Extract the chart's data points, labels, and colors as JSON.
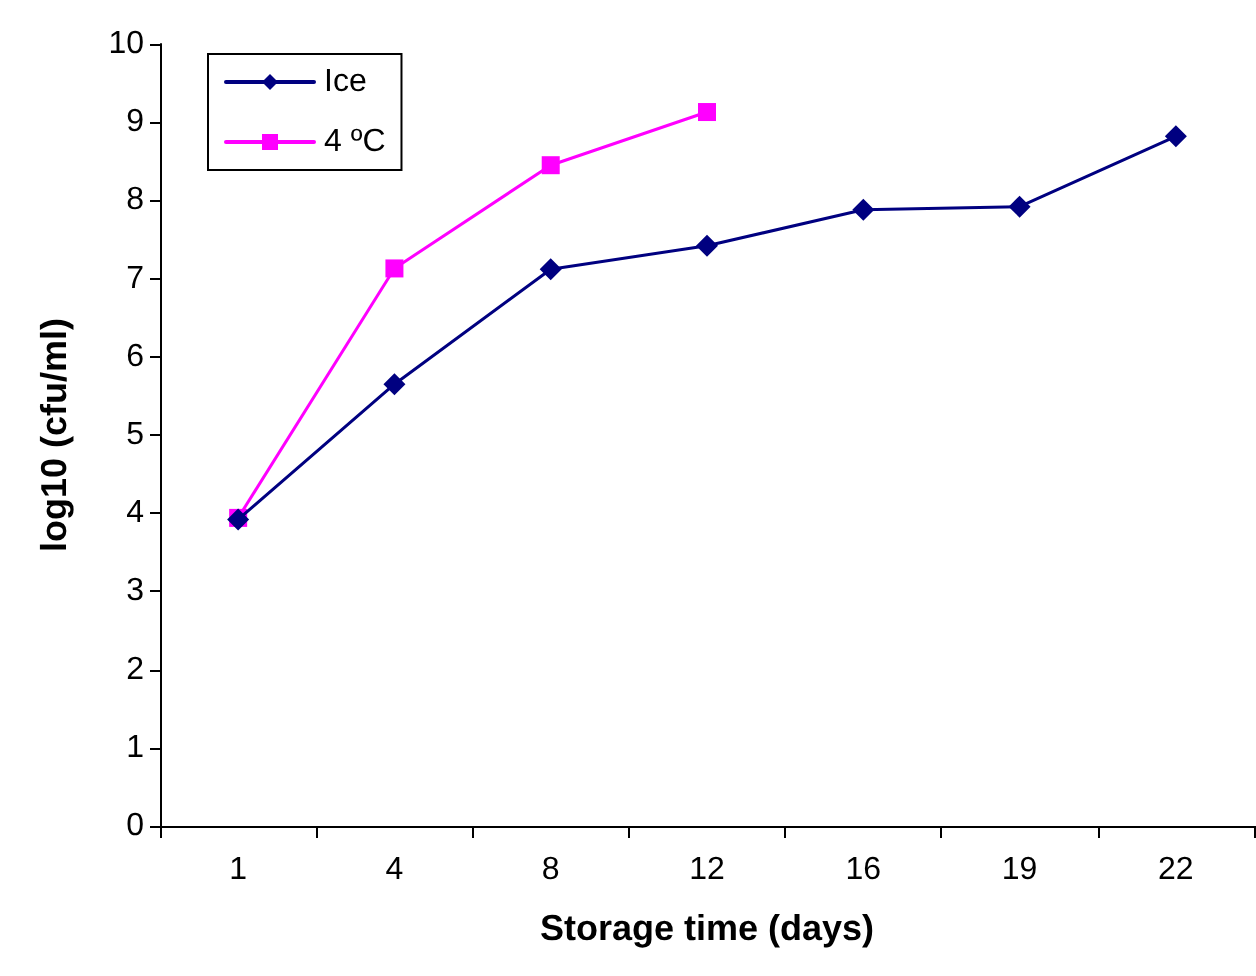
{
  "chart_data": {
    "type": "line",
    "xlabel": "Storage time (days)",
    "ylabel": "log10 (cfu/ml)",
    "categories": [
      "1",
      "4",
      "8",
      "12",
      "16",
      "19",
      "22"
    ],
    "series": [
      {
        "name": "Ice",
        "color": "#000080",
        "marker": "diamond",
        "values": [
          3.92,
          5.65,
          7.12,
          7.42,
          7.88,
          7.92,
          8.82
        ]
      },
      {
        "name": "4 ºC",
        "color": "#ff00ff",
        "marker": "square",
        "values": [
          3.94,
          7.13,
          8.45,
          9.13,
          null,
          null,
          null
        ]
      }
    ],
    "ylim": [
      0,
      10
    ],
    "yticks": [
      0,
      1,
      2,
      3,
      4,
      5,
      6,
      7,
      8,
      9,
      10
    ],
    "grid": false,
    "legend": "top left",
    "line_style": "solid"
  }
}
